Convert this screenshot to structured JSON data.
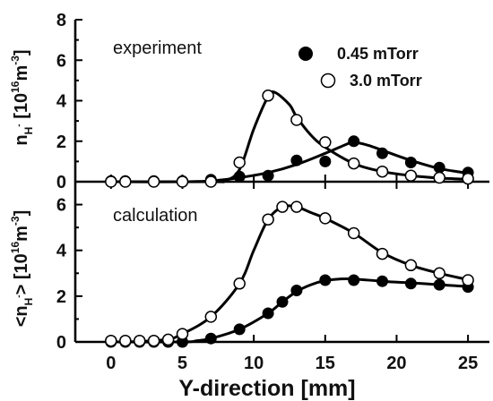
{
  "chart_data": [
    {
      "type": "line",
      "panel": "top",
      "annotation": "experiment",
      "xlim": [
        -2.5,
        26.5
      ],
      "ylim": [
        0,
        8
      ],
      "xticks": [
        0,
        5,
        10,
        15,
        20,
        25
      ],
      "yticks": [
        0,
        2,
        4,
        6,
        8
      ],
      "ylabel": {
        "text": "n",
        "sub": "H",
        "sub_sup": "-",
        "bracket_open": " [10",
        "exponent": "16",
        "unit": "m",
        "unit_exp": "-3",
        "bracket_close": "]"
      },
      "series": [
        {
          "name": "0.45 mTorr",
          "marker": "filled",
          "points": [
            [
              0,
              0.03
            ],
            [
              1,
              0.03
            ],
            [
              3,
              0.03
            ],
            [
              5,
              0.03
            ],
            [
              7,
              0.1
            ],
            [
              9,
              0.25
            ],
            [
              11,
              0.3
            ],
            [
              13,
              1.05
            ],
            [
              15,
              1.0
            ],
            [
              17,
              2.0
            ],
            [
              19,
              1.4
            ],
            [
              21,
              0.95
            ],
            [
              23,
              0.7
            ],
            [
              25,
              0.45
            ]
          ],
          "curve": [
            [
              -0.2,
              0.0
            ],
            [
              5,
              0.0
            ],
            [
              7,
              0.04
            ],
            [
              9,
              0.2
            ],
            [
              11,
              0.45
            ],
            [
              13,
              0.85
            ],
            [
              15,
              1.4
            ],
            [
              16.5,
              1.85
            ],
            [
              17,
              1.95
            ],
            [
              18,
              1.8
            ],
            [
              19,
              1.55
            ],
            [
              21,
              1.05
            ],
            [
              23,
              0.65
            ],
            [
              25,
              0.42
            ]
          ]
        },
        {
          "name": "3.0 mTorr",
          "marker": "open",
          "points": [
            [
              0,
              0.0
            ],
            [
              1,
              0.0
            ],
            [
              3,
              0.0
            ],
            [
              5,
              0.0
            ],
            [
              7,
              0.0
            ],
            [
              9,
              0.95
            ],
            [
              11,
              4.25
            ],
            [
              13,
              3.05
            ],
            [
              15,
              1.95
            ],
            [
              17,
              0.9
            ],
            [
              19,
              0.5
            ],
            [
              21,
              0.3
            ],
            [
              23,
              0.2
            ],
            [
              25,
              0.15
            ]
          ],
          "curve": [
            [
              -0.2,
              0.0
            ],
            [
              7,
              0.0
            ],
            [
              8,
              0.05
            ],
            [
              9,
              0.6
            ],
            [
              10,
              2.6
            ],
            [
              11,
              4.2
            ],
            [
              11.5,
              4.4
            ],
            [
              12.5,
              3.8
            ],
            [
              13,
              3.2
            ],
            [
              14,
              2.3
            ],
            [
              15,
              1.7
            ],
            [
              17,
              0.9
            ],
            [
              19,
              0.5
            ],
            [
              21,
              0.3
            ],
            [
              23,
              0.18
            ],
            [
              25,
              0.12
            ]
          ]
        }
      ]
    },
    {
      "type": "line",
      "panel": "bottom",
      "annotation": "calculation",
      "xlim": [
        -2.5,
        26.5
      ],
      "ylim": [
        0,
        7
      ],
      "xticks": [
        0,
        5,
        10,
        15,
        20,
        25
      ],
      "yticks": [
        0,
        2,
        4,
        6
      ],
      "xlabel": "Y-direction [mm]",
      "ylabel": {
        "text": "<n",
        "sub": "H",
        "sub_sup": "-",
        "bracket_open": "> [10",
        "exponent": "16",
        "unit": "m",
        "unit_exp": "-3",
        "bracket_close": "]"
      },
      "series": [
        {
          "name": "0.45 mTorr",
          "marker": "filled",
          "points": [
            [
              0,
              0.0
            ],
            [
              1,
              0.0
            ],
            [
              2,
              0.0
            ],
            [
              3,
              0.0
            ],
            [
              4,
              0.0
            ],
            [
              5,
              0.0
            ],
            [
              7,
              0.15
            ],
            [
              9,
              0.55
            ],
            [
              11,
              1.25
            ],
            [
              12,
              1.75
            ],
            [
              13,
              2.25
            ],
            [
              15,
              2.7
            ],
            [
              17,
              2.7
            ],
            [
              19,
              2.65
            ],
            [
              21,
              2.55
            ],
            [
              23,
              2.5
            ],
            [
              25,
              2.4
            ]
          ],
          "curve": [
            [
              -0.2,
              0.0
            ],
            [
              5,
              0.0
            ],
            [
              6,
              0.05
            ],
            [
              7,
              0.15
            ],
            [
              9,
              0.55
            ],
            [
              11,
              1.25
            ],
            [
              12,
              1.75
            ],
            [
              13,
              2.2
            ],
            [
              14,
              2.5
            ],
            [
              15,
              2.68
            ],
            [
              16,
              2.75
            ],
            [
              17,
              2.75
            ],
            [
              19,
              2.65
            ],
            [
              21,
              2.58
            ],
            [
              23,
              2.5
            ],
            [
              25,
              2.42
            ]
          ]
        },
        {
          "name": "3.0 mTorr",
          "marker": "open",
          "points": [
            [
              0,
              0.05
            ],
            [
              1,
              0.05
            ],
            [
              2,
              0.05
            ],
            [
              3,
              0.05
            ],
            [
              4,
              0.1
            ],
            [
              5,
              0.35
            ],
            [
              7,
              1.1
            ],
            [
              9,
              2.55
            ],
            [
              11,
              5.35
            ],
            [
              12,
              5.9
            ],
            [
              13,
              5.9
            ],
            [
              15,
              5.4
            ],
            [
              17,
              4.75
            ],
            [
              19,
              3.85
            ],
            [
              21,
              3.35
            ],
            [
              23,
              3.0
            ],
            [
              25,
              2.7
            ]
          ],
          "curve": [
            [
              -0.2,
              0.0
            ],
            [
              2,
              0.02
            ],
            [
              4,
              0.12
            ],
            [
              5,
              0.35
            ],
            [
              7,
              1.1
            ],
            [
              9,
              2.55
            ],
            [
              10,
              4.0
            ],
            [
              11,
              5.35
            ],
            [
              12,
              5.9
            ],
            [
              13,
              5.9
            ],
            [
              14,
              5.65
            ],
            [
              15,
              5.4
            ],
            [
              17,
              4.75
            ],
            [
              19,
              3.9
            ],
            [
              21,
              3.35
            ],
            [
              23,
              3.0
            ],
            [
              25,
              2.72
            ]
          ]
        }
      ]
    }
  ]
}
